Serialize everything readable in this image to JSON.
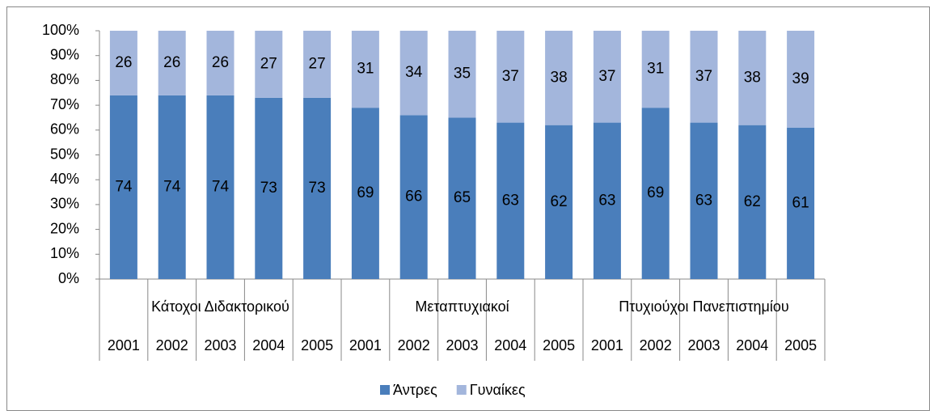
{
  "chart_data": {
    "type": "bar",
    "stacked": true,
    "groups": [
      {
        "name": "Κάτοχοι Διδακτορικού",
        "categories": [
          "2001",
          "2002",
          "2003",
          "2004",
          "2005"
        ]
      },
      {
        "name": "Μεταπτυχιακοί",
        "categories": [
          "2001",
          "2002",
          "2003",
          "2004",
          "2005"
        ]
      },
      {
        "name": "Πτυχιούχοι Πανεπιστημίου",
        "categories": [
          "2001",
          "2002",
          "2003",
          "2004",
          "2005"
        ]
      }
    ],
    "series": [
      {
        "name": "Άντρες",
        "color": "#4a7ebb",
        "values": [
          74,
          74,
          74,
          73,
          73,
          69,
          66,
          65,
          63,
          62,
          63,
          69,
          63,
          62,
          61
        ]
      },
      {
        "name": "Γυναίκες",
        "color": "#a3b6dc",
        "values": [
          26,
          26,
          26,
          27,
          27,
          31,
          34,
          35,
          37,
          38,
          37,
          31,
          37,
          38,
          39
        ]
      }
    ],
    "ylim": [
      0,
      100
    ],
    "yticks": [
      {
        "value": 0,
        "label": "0%"
      },
      {
        "value": 10,
        "label": "10%"
      },
      {
        "value": 20,
        "label": "20%"
      },
      {
        "value": 30,
        "label": "30%"
      },
      {
        "value": 40,
        "label": "40%"
      },
      {
        "value": 50,
        "label": "50%"
      },
      {
        "value": 60,
        "label": "60%"
      },
      {
        "value": 70,
        "label": "70%"
      },
      {
        "value": 80,
        "label": "80%"
      },
      {
        "value": 90,
        "label": "90%"
      },
      {
        "value": 100,
        "label": "100%"
      }
    ],
    "legend": "bottom"
  }
}
